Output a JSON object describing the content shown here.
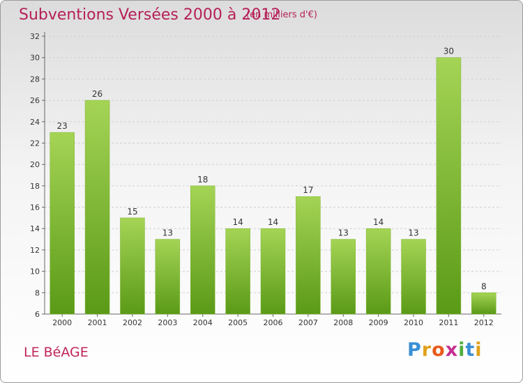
{
  "header": {
    "title": "Subventions Versées 2000 à 2012",
    "subtitle": "(en milliers d'€)"
  },
  "footer": {
    "place": "LE BéAGE",
    "logo_text": "Proxiti"
  },
  "colors": {
    "bar_top": "#9fd14d",
    "bar_bottom": "#5a9a17",
    "title": "#b51f57"
  },
  "chart_data": {
    "type": "bar",
    "title": "Subventions Versées 2000 à 2012",
    "subtitle": "(en milliers d'€)",
    "categories": [
      "2000",
      "2001",
      "2002",
      "2003",
      "2004",
      "2005",
      "2006",
      "2007",
      "2008",
      "2009",
      "2010",
      "2011",
      "2012"
    ],
    "values": [
      23,
      26,
      15,
      13,
      18,
      14,
      14,
      17,
      13,
      14,
      13,
      30,
      8
    ],
    "ylim": [
      6,
      32
    ],
    "yticks": [
      6,
      8,
      10,
      12,
      14,
      16,
      18,
      20,
      22,
      24,
      26,
      28,
      30,
      32
    ],
    "grid": true,
    "xlabel": "",
    "ylabel": ""
  }
}
